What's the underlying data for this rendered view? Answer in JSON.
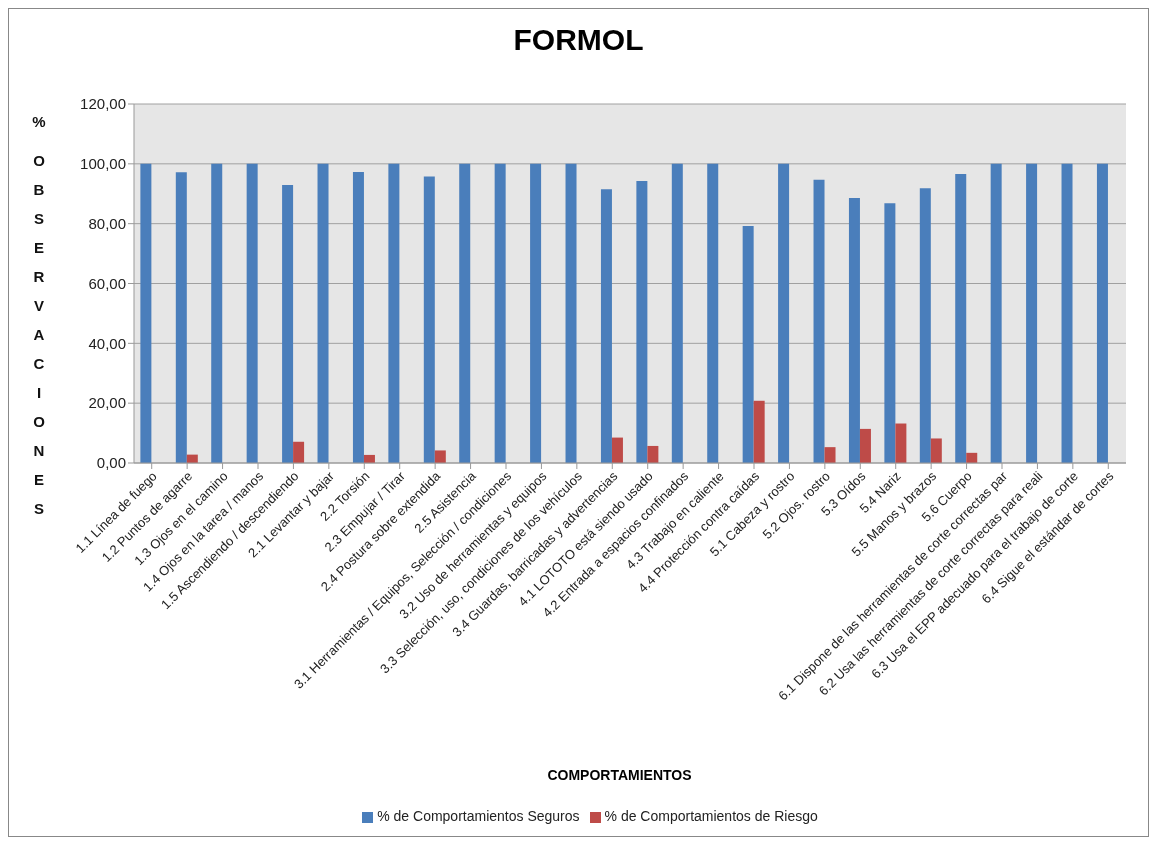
{
  "chart_data": {
    "type": "bar",
    "title": "FORMOL",
    "xlabel": "COMPORTAMIENTOS",
    "ylabel": "% OBSERVACIONES",
    "categories": [
      "1.1 Línea de fuego",
      "1.2 Puntos de agarre",
      "1.3 Ojos en el camino",
      "1.4 Ojos en la tarea / manos",
      "1.5 Ascendiendo / descendiendo",
      "2.1 Levantar y bajar",
      "2.2 Torsión",
      "2.3 Empujar / Tirar",
      "2.4 Postura sobre extendida",
      "2.5 Asistencia",
      "3.1 Herramientas / Equipos, Selección / condiciones",
      "3.2 Uso de herramientas y equipos",
      "3.3 Selección, uso, condiciones de los vehículos",
      "3.4 Guardas, barricadas y advertencias",
      "4.1 LOTOTO está siendo usado",
      "4.2 Entrada a espacios confinados",
      "4.3 Trabajo en caliente",
      "4.4 Protección contra caídas",
      "5.1 Cabeza y rostro",
      "5.2 Ojos. rostro",
      "5.3 Oídos",
      "5.4 Nariz",
      "5.5 Manos y brazos",
      "5.6 Cuerpo",
      "6.1 Dispone de las herramientas de corte correctas par",
      "6.2 Usa las herramientas de corte correctas para reali",
      "6.3 Usa el EPP adecuado para el trabajo de corte",
      "6.4 Sigue el estándar de cortes"
    ],
    "series": [
      {
        "name": "% de Comportamientos Seguros",
        "color": "#4a7ebb",
        "values": [
          100,
          97.2,
          100,
          100,
          92.9,
          100,
          97.3,
          100,
          95.8,
          100,
          100,
          100,
          100,
          91.5,
          94.3,
          100,
          100,
          79.2,
          100,
          94.7,
          88.6,
          86.8,
          91.8,
          96.6,
          100,
          100,
          100,
          100
        ]
      },
      {
        "name": "% de Comportamientos de Riesgo",
        "color": "#be4b48",
        "values": [
          0,
          2.8,
          0,
          0,
          7.1,
          0,
          2.7,
          0,
          4.2,
          0,
          0,
          0,
          0,
          8.5,
          5.7,
          0,
          0,
          20.8,
          0,
          5.3,
          11.4,
          13.2,
          8.2,
          3.4,
          0,
          0,
          0,
          0
        ]
      }
    ],
    "ylim": [
      0,
      120
    ],
    "yticks": [
      {
        "value": 0,
        "label": "0,00"
      },
      {
        "value": 20,
        "label": "20,00"
      },
      {
        "value": 40,
        "label": "40,00"
      },
      {
        "value": 60,
        "label": "60,00"
      },
      {
        "value": 80,
        "label": "80,00"
      },
      {
        "value": 100,
        "label": "100,00"
      },
      {
        "value": 120,
        "label": "120,00"
      }
    ],
    "grid": "y",
    "legend": "bottom"
  }
}
